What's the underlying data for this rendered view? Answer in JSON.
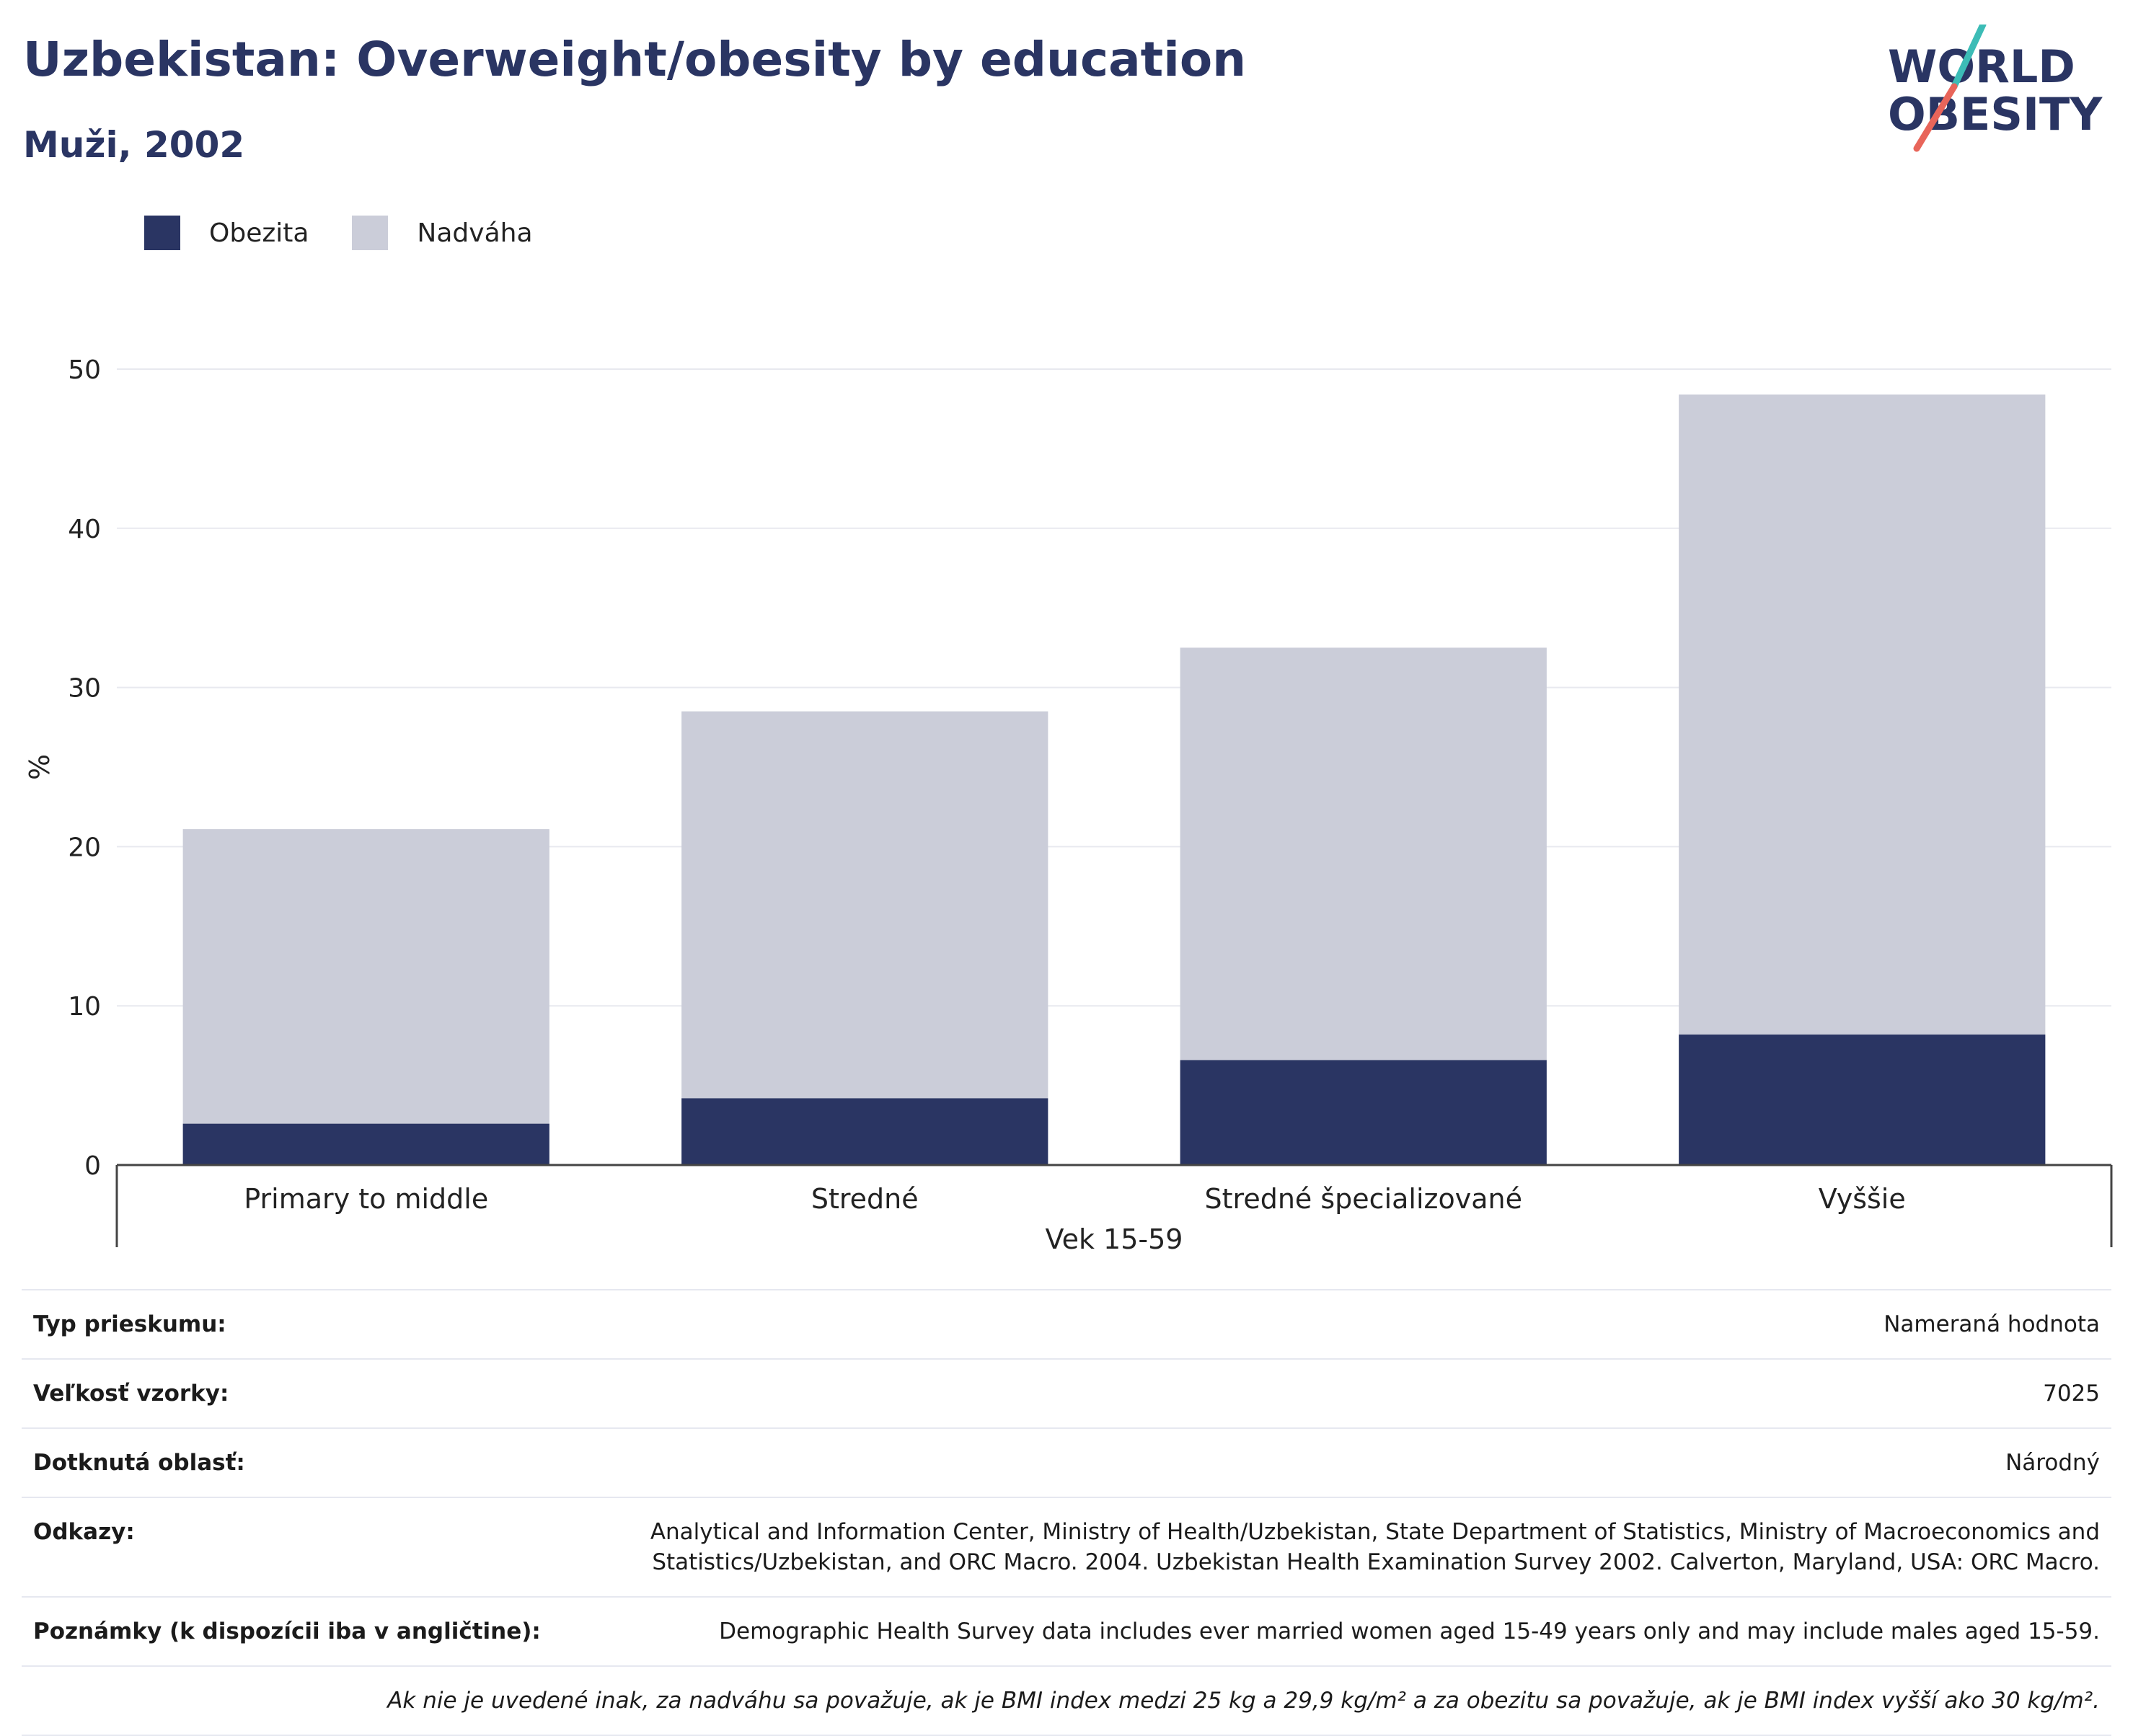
{
  "header": {
    "title": "Uzbekistan: Overweight/obesity by education",
    "subtitle": "Muži, 2002"
  },
  "logo": {
    "line1": "WORLD",
    "line2": "OBESITY",
    "text_color": "#2a3563",
    "slash_colors": [
      "#3cbcb6",
      "#e8655a"
    ]
  },
  "legend": [
    {
      "label": "Obezita",
      "color": "#2a3563"
    },
    {
      "label": "Nadváha",
      "color": "#cbcdd9"
    }
  ],
  "chart_data": {
    "type": "bar",
    "stacked": true,
    "categories": [
      "Primary to middle",
      "Stredné",
      "Stredné špecializované",
      "Vyššie"
    ],
    "series": [
      {
        "name": "Obezita",
        "values": [
          2.6,
          4.2,
          6.6,
          8.2
        ],
        "color": "#2a3563"
      },
      {
        "name": "Nadváha",
        "values": [
          18.5,
          24.3,
          25.9,
          40.2
        ],
        "color": "#cbcdd9"
      }
    ],
    "ylabel": "%",
    "xlabel": "Vek 15-59",
    "ylim": [
      0,
      50
    ],
    "yticks": [
      0,
      10,
      20,
      30,
      40,
      50
    ],
    "grid": true
  },
  "meta": [
    {
      "label": "Typ prieskumu:",
      "value": "Nameraná hodnota"
    },
    {
      "label": "Veľkosť vzorky:",
      "value": "7025"
    },
    {
      "label": "Dotknutá oblasť:",
      "value": "Národný"
    },
    {
      "label": "Odkazy:",
      "value": "Analytical and Information Center, Ministry of Health/Uzbekistan, State Department of Statistics, Ministry of Macroeconomics and Statistics/Uzbekistan, and ORC Macro. 2004. Uzbekistan Health Examination Survey 2002. Calverton, Maryland, USA: ORC Macro."
    },
    {
      "label": "Poznámky (k dispozícii iba v angličtine):",
      "value": "Demographic Health Survey data includes ever married women aged 15-49 years only and may include males aged 15-59."
    }
  ],
  "note": "Ak nie je uvedené inak, za nadváhu sa považuje, ak je BMI index medzi 25 kg a 29,9 kg/m² a za obezitu sa považuje, ak je BMI index vyšší ako 30 kg/m²."
}
